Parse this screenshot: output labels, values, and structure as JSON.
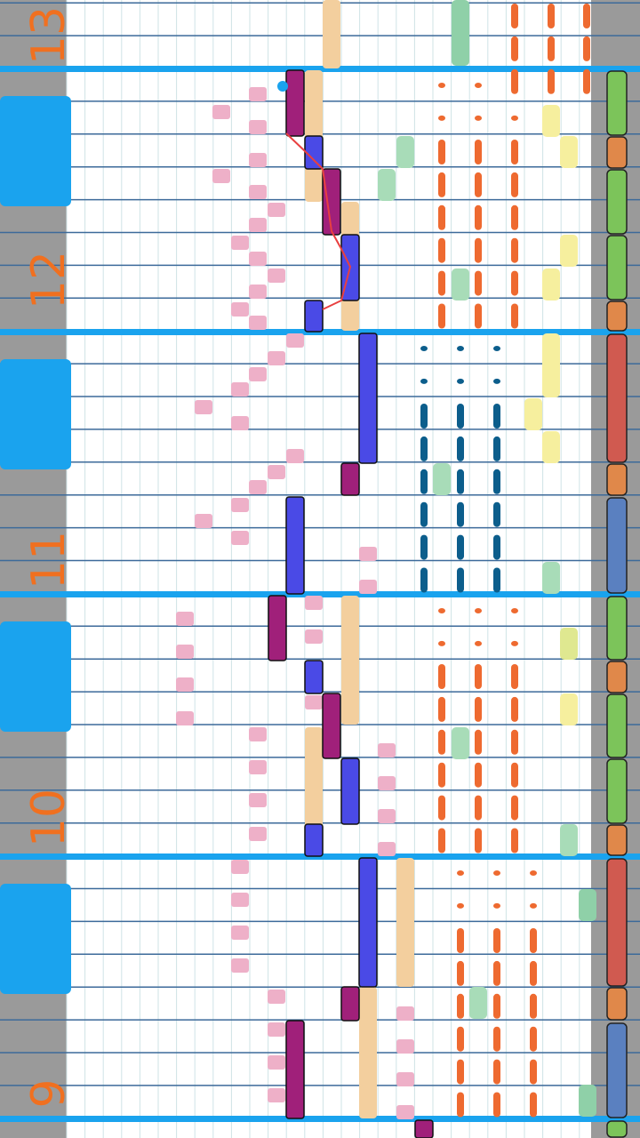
{
  "measures": {
    "labels": [
      "13",
      "12",
      "11",
      "10",
      "9"
    ]
  }
}
